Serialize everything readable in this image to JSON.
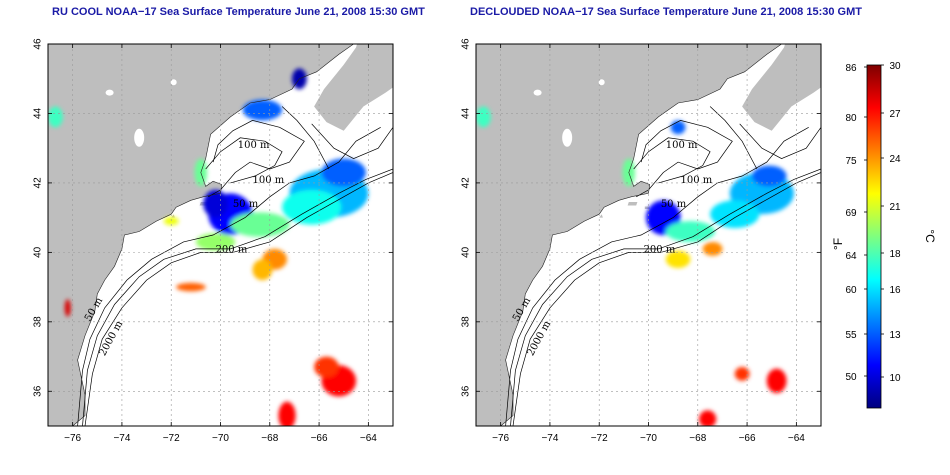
{
  "panels": [
    {
      "id": "left",
      "title": "RU COOL NOAA−17 Sea Surface Temperature June 21, 2008 15:30 GMT"
    },
    {
      "id": "right",
      "title": "DECLOUDED NOAA−17 Sea Surface Temperature June 21, 2008 15:30 GMT"
    }
  ],
  "map": {
    "lon_range": [
      -77,
      -63
    ],
    "lat_range": [
      35,
      46
    ],
    "lon_ticks": [
      -76,
      -74,
      -72,
      -70,
      -68,
      -66,
      -64
    ],
    "lat_ticks": [
      36,
      38,
      40,
      42,
      44,
      46
    ],
    "grid": true,
    "land_color": "#bebebe",
    "ocean_color": "#ffffff"
  },
  "contour_labels": [
    {
      "text": "100 m",
      "lon": -69.3,
      "lat": 43.0
    },
    {
      "text": "100 m",
      "lon": -68.7,
      "lat": 42.0
    },
    {
      "text": "50 m",
      "lon": -69.5,
      "lat": 41.3
    },
    {
      "text": "200 m",
      "lon": -70.2,
      "lat": 40.0
    },
    {
      "text": "50 m",
      "lon": -75.3,
      "lat": 38.0
    },
    {
      "text": "2000 m",
      "lon": -74.7,
      "lat": 37.0
    }
  ],
  "colorbar": {
    "celsius_ticks": [
      "30",
      "27",
      "24",
      "21",
      "18",
      "16",
      "13",
      "10"
    ],
    "fahrenheit_ticks": [
      "86",
      "80",
      "75",
      "69",
      "64",
      "60",
      "55",
      "50"
    ],
    "celsius_unit": "°C",
    "fahrenheit_unit": "°F",
    "range_c": [
      7,
      30
    ],
    "stops": [
      "#00007f",
      "#0000ff",
      "#007fff",
      "#00ffff",
      "#7fff7f",
      "#ffff00",
      "#ff7f00",
      "#ff0000",
      "#7f0000"
    ]
  },
  "sst_patches": {
    "left": [
      {
        "lon": -65.6,
        "lat": 41.7,
        "temp": 14,
        "rx": 1.6,
        "ry": 0.7
      },
      {
        "lon": -66.3,
        "lat": 41.3,
        "temp": 16,
        "rx": 1.2,
        "ry": 0.5
      },
      {
        "lon": -65.0,
        "lat": 42.3,
        "temp": 12,
        "rx": 0.9,
        "ry": 0.4
      },
      {
        "lon": -69.6,
        "lat": 41.1,
        "temp": 10,
        "rx": 0.9,
        "ry": 0.6
      },
      {
        "lon": -70.2,
        "lat": 41.4,
        "temp": 9,
        "rx": 0.5,
        "ry": 0.4
      },
      {
        "lon": -68.4,
        "lat": 40.8,
        "temp": 18,
        "rx": 1.2,
        "ry": 0.35
      },
      {
        "lon": -70.2,
        "lat": 40.3,
        "temp": 19,
        "rx": 0.8,
        "ry": 0.25
      },
      {
        "lon": -67.8,
        "lat": 39.8,
        "temp": 24,
        "rx": 0.5,
        "ry": 0.3
      },
      {
        "lon": -68.3,
        "lat": 39.5,
        "temp": 23,
        "rx": 0.4,
        "ry": 0.3
      },
      {
        "lon": -71.2,
        "lat": 39.0,
        "temp": 25,
        "rx": 0.6,
        "ry": 0.12
      },
      {
        "lon": -68.3,
        "lat": 44.1,
        "temp": 12,
        "rx": 0.8,
        "ry": 0.3
      },
      {
        "lon": -66.8,
        "lat": 45.0,
        "temp": 8,
        "rx": 0.3,
        "ry": 0.3
      },
      {
        "lon": -76.7,
        "lat": 43.9,
        "temp": 17,
        "rx": 0.3,
        "ry": 0.3
      },
      {
        "lon": -70.8,
        "lat": 42.3,
        "temp": 18,
        "rx": 0.25,
        "ry": 0.4
      },
      {
        "lon": -72.0,
        "lat": 40.9,
        "temp": 21,
        "rx": 0.3,
        "ry": 0.12
      },
      {
        "lon": -76.2,
        "lat": 38.4,
        "temp": 28,
        "rx": 0.12,
        "ry": 0.25
      },
      {
        "lon": -65.2,
        "lat": 36.3,
        "temp": 27,
        "rx": 0.7,
        "ry": 0.45
      },
      {
        "lon": -65.7,
        "lat": 36.7,
        "temp": 26,
        "rx": 0.5,
        "ry": 0.3
      },
      {
        "lon": -67.3,
        "lat": 35.3,
        "temp": 27,
        "rx": 0.35,
        "ry": 0.4
      }
    ],
    "right": [
      {
        "lon": -65.4,
        "lat": 41.7,
        "temp": 14,
        "rx": 1.3,
        "ry": 0.6
      },
      {
        "lon": -66.5,
        "lat": 41.1,
        "temp": 15,
        "rx": 1.0,
        "ry": 0.4
      },
      {
        "lon": -65.1,
        "lat": 42.2,
        "temp": 12,
        "rx": 0.7,
        "ry": 0.3
      },
      {
        "lon": -69.4,
        "lat": 41.0,
        "temp": 10,
        "rx": 0.7,
        "ry": 0.5
      },
      {
        "lon": -68.3,
        "lat": 40.6,
        "temp": 17,
        "rx": 1.0,
        "ry": 0.3
      },
      {
        "lon": -68.8,
        "lat": 39.8,
        "temp": 22,
        "rx": 0.5,
        "ry": 0.25
      },
      {
        "lon": -67.4,
        "lat": 40.1,
        "temp": 24,
        "rx": 0.4,
        "ry": 0.2
      },
      {
        "lon": -68.8,
        "lat": 43.6,
        "temp": 12,
        "rx": 0.3,
        "ry": 0.2
      },
      {
        "lon": -76.7,
        "lat": 43.9,
        "temp": 17,
        "rx": 0.3,
        "ry": 0.3
      },
      {
        "lon": -70.8,
        "lat": 42.3,
        "temp": 18,
        "rx": 0.25,
        "ry": 0.4
      },
      {
        "lon": -64.8,
        "lat": 36.3,
        "temp": 27,
        "rx": 0.4,
        "ry": 0.35
      },
      {
        "lon": -66.2,
        "lat": 36.5,
        "temp": 26,
        "rx": 0.3,
        "ry": 0.2
      },
      {
        "lon": -67.6,
        "lat": 35.2,
        "temp": 27,
        "rx": 0.35,
        "ry": 0.25
      }
    ]
  }
}
